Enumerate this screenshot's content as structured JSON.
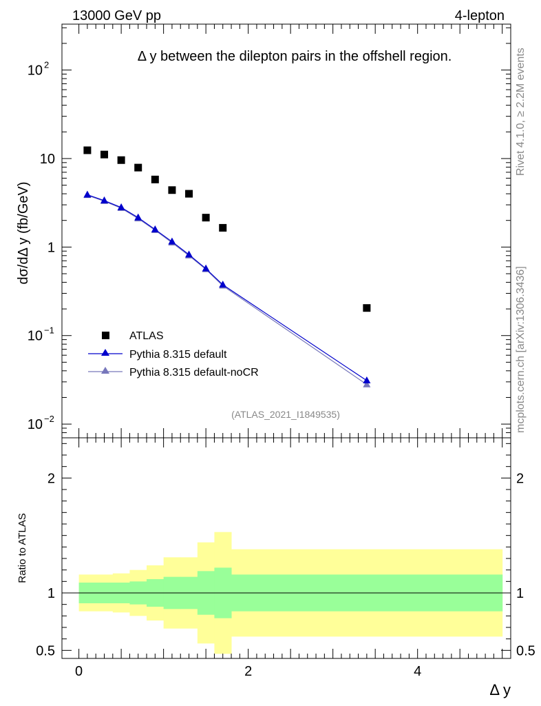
{
  "header": {
    "left": "13000 GeV pp",
    "right": "4-lepton",
    "side_top": "Rivet 4.1.0, ≥ 2.2M events",
    "side_bottom": "mcplots.cern.ch [arXiv:1306.3436]"
  },
  "chart_data": {
    "type": "scatter",
    "title": "Δ y between the dilepton pairs in the offshell region.",
    "watermark": "(ATLAS_2021_I1849535)",
    "xlabel": "Δ y",
    "ylabel": "dσ/dΔ y (fb/GeV)",
    "xlim": [
      -0.2,
      5.1
    ],
    "ylim": [
      0.007,
      330
    ],
    "yscale": "log",
    "x_ticks": [
      "0",
      "2",
      "4"
    ],
    "x_tick_values": [
      0,
      2,
      4
    ],
    "y_ticks": [
      {
        "value": 0.01,
        "base": "10",
        "exp": "−2"
      },
      {
        "value": 0.1,
        "base": "10",
        "exp": "−1"
      },
      {
        "value": 1,
        "base": "1",
        "exp": ""
      },
      {
        "value": 10,
        "base": "10",
        "exp": ""
      },
      {
        "value": 100,
        "base": "10",
        "exp": "2"
      }
    ],
    "series": [
      {
        "name": "ATLAS",
        "marker": "square",
        "color": "#000000",
        "x": [
          0.1,
          0.3,
          0.5,
          0.7,
          0.9,
          1.1,
          1.3,
          1.5,
          1.7,
          3.4
        ],
        "values": [
          12.4,
          11.1,
          9.6,
          7.9,
          5.8,
          4.4,
          4.0,
          2.15,
          1.65,
          0.205
        ]
      },
      {
        "name": "Pythia 8.315 default",
        "marker": "triangle",
        "color": "#0000cc",
        "x": [
          0.1,
          0.3,
          0.5,
          0.7,
          0.9,
          1.1,
          1.3,
          1.5,
          1.7,
          3.4
        ],
        "values": [
          3.9,
          3.35,
          2.8,
          2.15,
          1.58,
          1.15,
          0.82,
          0.57,
          0.375,
          0.031
        ]
      },
      {
        "name": "Pythia 8.315 default-noCR",
        "marker": "triangle",
        "color": "#7777bb",
        "x": [
          0.1,
          0.3,
          0.5,
          0.7,
          0.9,
          1.1,
          1.3,
          1.5,
          1.7,
          3.4
        ],
        "values": [
          3.85,
          3.3,
          2.75,
          2.1,
          1.55,
          1.12,
          0.8,
          0.56,
          0.365,
          0.028
        ]
      }
    ],
    "ratio_panel": {
      "ylabel": "Ratio to ATLAS",
      "ylim": [
        0.43,
        2.35
      ],
      "y_ticks": [
        "0.5",
        "1",
        "2"
      ],
      "y_tick_values": [
        0.5,
        1,
        2
      ],
      "bin_edges": [
        0,
        0.2,
        0.4,
        0.6,
        0.8,
        1.0,
        1.2,
        1.4,
        1.6,
        1.8,
        5.0
      ],
      "band_inner": {
        "color": "#99ff99",
        "low": [
          0.91,
          0.91,
          0.91,
          0.9,
          0.88,
          0.86,
          0.86,
          0.81,
          0.78,
          0.84
        ],
        "high": [
          1.09,
          1.09,
          1.09,
          1.1,
          1.12,
          1.14,
          1.14,
          1.19,
          1.22,
          1.16
        ]
      },
      "band_outer": {
        "color": "#ffff99",
        "low": [
          0.84,
          0.84,
          0.83,
          0.8,
          0.76,
          0.69,
          0.69,
          0.56,
          0.47,
          0.62
        ],
        "high": [
          1.16,
          1.16,
          1.17,
          1.2,
          1.24,
          1.31,
          1.31,
          1.44,
          1.53,
          1.38
        ]
      }
    }
  }
}
